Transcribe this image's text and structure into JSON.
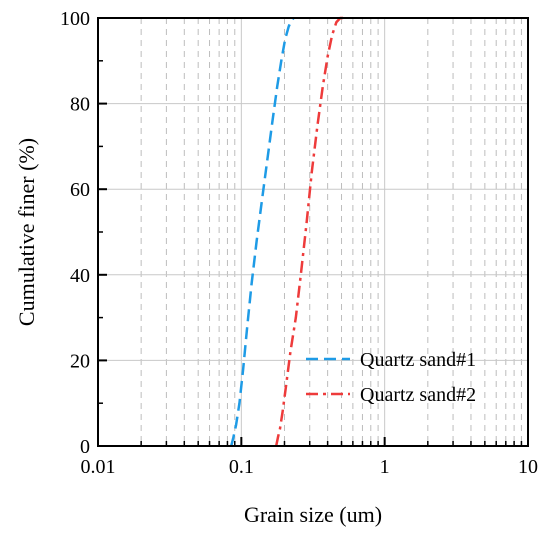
{
  "chart_data": {
    "type": "line",
    "title": "",
    "xlabel": "Grain size (um)",
    "ylabel": "Cumulative finer (%)",
    "xscale": "log",
    "xlim": [
      0.01,
      10
    ],
    "ylim": [
      0,
      100
    ],
    "x_ticks": [
      0.01,
      0.1,
      1,
      10
    ],
    "x_tick_labels": [
      "0.01",
      "0.1",
      "1",
      "10"
    ],
    "y_ticks": [
      0,
      20,
      40,
      60,
      80,
      100
    ],
    "y_tick_labels": [
      "0",
      "20",
      "40",
      "60",
      "80",
      "100"
    ],
    "grid": {
      "major": true,
      "minor_x": true
    },
    "legend_position": "lower-right",
    "series": [
      {
        "name": "Quartz sand#1",
        "color": "#1e9be6",
        "dash": "dash",
        "x": [
          0.085,
          0.088,
          0.092,
          0.097,
          0.103,
          0.11,
          0.118,
          0.128,
          0.14,
          0.152,
          0.165,
          0.178,
          0.19,
          0.202,
          0.214,
          0.224,
          0.232
        ],
        "y": [
          0,
          2,
          5,
          10,
          18,
          28,
          38,
          48,
          58,
          67,
          76,
          84,
          90,
          95,
          98,
          99.5,
          100
        ]
      },
      {
        "name": "Quartz sand#2",
        "color": "#ee3b3b",
        "dash": "dashdot",
        "x": [
          0.175,
          0.18,
          0.186,
          0.194,
          0.205,
          0.22,
          0.24,
          0.26,
          0.285,
          0.31,
          0.34,
          0.37,
          0.4,
          0.43,
          0.46,
          0.49,
          0.52
        ],
        "y": [
          0,
          2,
          4,
          8,
          14,
          22,
          30,
          40,
          52,
          64,
          75,
          84,
          91,
          96,
          99,
          100,
          100
        ]
      }
    ]
  }
}
